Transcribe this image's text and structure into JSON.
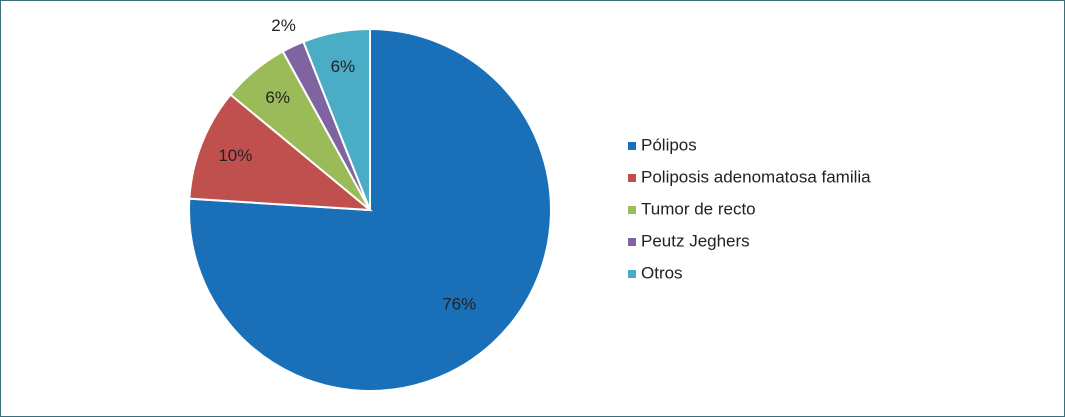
{
  "chart_data": {
    "type": "pie",
    "categories": [
      "Pólipos",
      "Poliposis adenomatosa familia",
      "Tumor de recto",
      "Peutz Jeghers",
      "Otros"
    ],
    "values": [
      76,
      10,
      6,
      2,
      6
    ],
    "value_labels": [
      "76%",
      "10%",
      "6%",
      "2%",
      "6%"
    ],
    "colors": [
      "#1a70b8",
      "#c0504d",
      "#9bbb59",
      "#8064a2",
      "#4bacc6"
    ],
    "legend": "right"
  }
}
